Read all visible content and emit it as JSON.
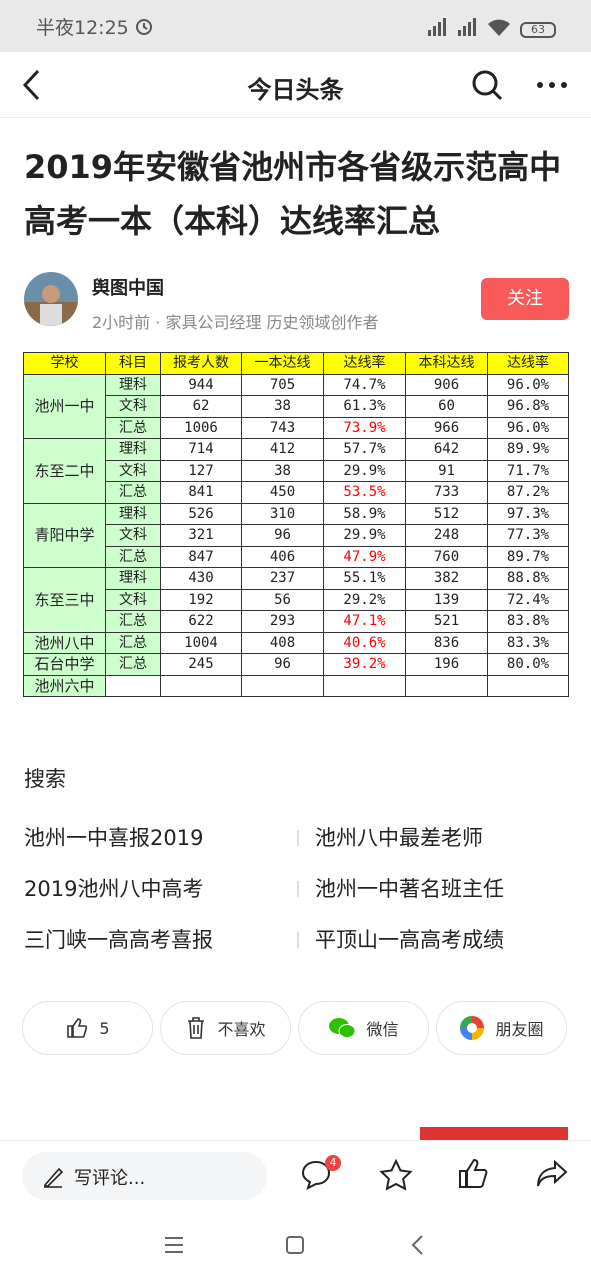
{
  "status_bar": {
    "time": "半夜12:25",
    "battery": "63"
  },
  "nav": {
    "title": "今日头条"
  },
  "article": {
    "title": "2019年安徽省池州市各省级示范高中高考一本（本科）达线率汇总",
    "author": {
      "name": "舆图中国",
      "meta": "2小时前 · 家具公司经理 历史领域创作者",
      "follow": "关注"
    }
  },
  "table": {
    "header": [
      "学校",
      "科目",
      "报考人数",
      "一本达线",
      "达线率",
      "本科达线",
      "达线率"
    ],
    "groups": [
      {
        "school": "池州一中",
        "rows": [
          [
            "理科",
            "944",
            "705",
            "74.7%",
            "906",
            "96.0%"
          ],
          [
            "文科",
            "62",
            "38",
            "61.3%",
            "60",
            "96.8%"
          ],
          [
            "汇总",
            "1006",
            "743",
            "73.9%",
            "966",
            "96.0%"
          ]
        ]
      },
      {
        "school": "东至二中",
        "rows": [
          [
            "理科",
            "714",
            "412",
            "57.7%",
            "642",
            "89.9%"
          ],
          [
            "文科",
            "127",
            "38",
            "29.9%",
            "91",
            "71.7%"
          ],
          [
            "汇总",
            "841",
            "450",
            "53.5%",
            "733",
            "87.2%"
          ]
        ]
      },
      {
        "school": "青阳中学",
        "rows": [
          [
            "理科",
            "526",
            "310",
            "58.9%",
            "512",
            "97.3%"
          ],
          [
            "文科",
            "321",
            "96",
            "29.9%",
            "248",
            "77.3%"
          ],
          [
            "汇总",
            "847",
            "406",
            "47.9%",
            "760",
            "89.7%"
          ]
        ]
      },
      {
        "school": "东至三中",
        "rows": [
          [
            "理科",
            "430",
            "237",
            "55.1%",
            "382",
            "88.8%"
          ],
          [
            "文科",
            "192",
            "56",
            "29.2%",
            "139",
            "72.4%"
          ],
          [
            "汇总",
            "622",
            "293",
            "47.1%",
            "521",
            "83.8%"
          ]
        ]
      },
      {
        "school": "池州八中",
        "rows": [
          [
            "汇总",
            "1004",
            "408",
            "40.6%",
            "836",
            "83.3%"
          ]
        ]
      },
      {
        "school": "石台中学",
        "rows": [
          [
            "汇总",
            "245",
            "96",
            "39.2%",
            "196",
            "80.0%"
          ]
        ]
      },
      {
        "school": "池州六中",
        "rows": []
      }
    ]
  },
  "search": {
    "title": "搜索",
    "items": [
      "池州一中喜报2019",
      "池州八中最差老师",
      "2019池州八中高考",
      "池州一中著名班主任",
      "三门峡一高高考喜报",
      "平顶山一高高考成绩"
    ]
  },
  "actions": {
    "like": "5",
    "dislike": "不喜欢",
    "wechat": "微信",
    "moments": "朋友圈"
  },
  "bottom_bar": {
    "comment": "写评论...",
    "badge": "4"
  }
}
